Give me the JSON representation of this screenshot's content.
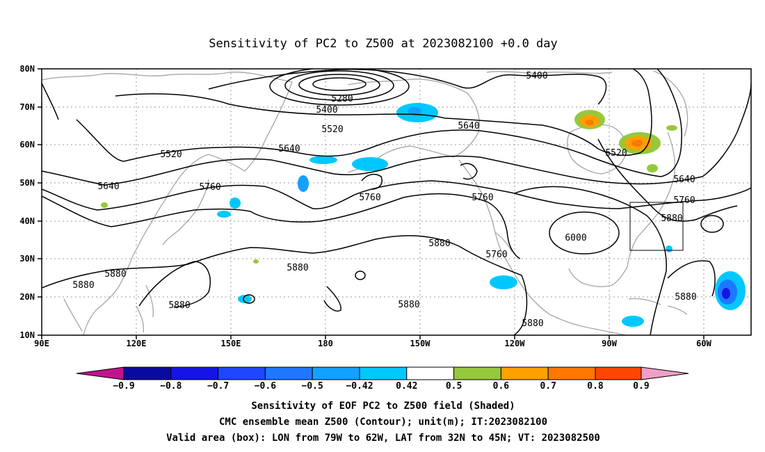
{
  "title": "Sensitivity of PC2 to Z500 at 2023082100 +0.0 day",
  "lat_ticks": [
    "80N",
    "70N",
    "60N",
    "50N",
    "40N",
    "30N",
    "20N",
    "10N"
  ],
  "lon_ticks": [
    "90E",
    "120E",
    "150E",
    "180",
    "150W",
    "120W",
    "90W",
    "60W"
  ],
  "contour_labels": [
    "5400",
    "5280",
    "5400",
    "5520",
    "5640",
    "5520",
    "5640",
    "5520",
    "5640",
    "5760",
    "5760",
    "5640",
    "5760",
    "5760",
    "5880",
    "6000",
    "5880",
    "5760",
    "5880",
    "5880",
    "5880",
    "5880",
    "5880",
    "5880",
    "5880"
  ],
  "colorbar": {
    "labels": [
      "−0.9",
      "−0.8",
      "−0.7",
      "−0.6",
      "−0.5",
      "−0.42",
      "0.42",
      "0.5",
      "0.6",
      "0.7",
      "0.8",
      "0.9"
    ],
    "colors": {
      "below": "#c0148c",
      "c1": "#0a0aa0",
      "c2": "#1414e6",
      "c3": "#1e46ff",
      "c4": "#1e78ff",
      "c5": "#14a0ff",
      "c6": "#00c8ff",
      "neutral": "#ffffff",
      "c7": "#96c83c",
      "c8": "#ffa000",
      "c9": "#ff7800",
      "c10": "#ff4600",
      "c11": "#ff0000",
      "above": "#f0a0c8"
    }
  },
  "captions": [
    "Sensitivity of EOF PC2 to Z500 field (Shaded)",
    "CMC ensemble mean Z500 (Contour); unit(m); IT:2023082100",
    "Valid area (box): LON from 79W to 62W, LAT from 32N to 45N; VT: 2023082500"
  ]
}
